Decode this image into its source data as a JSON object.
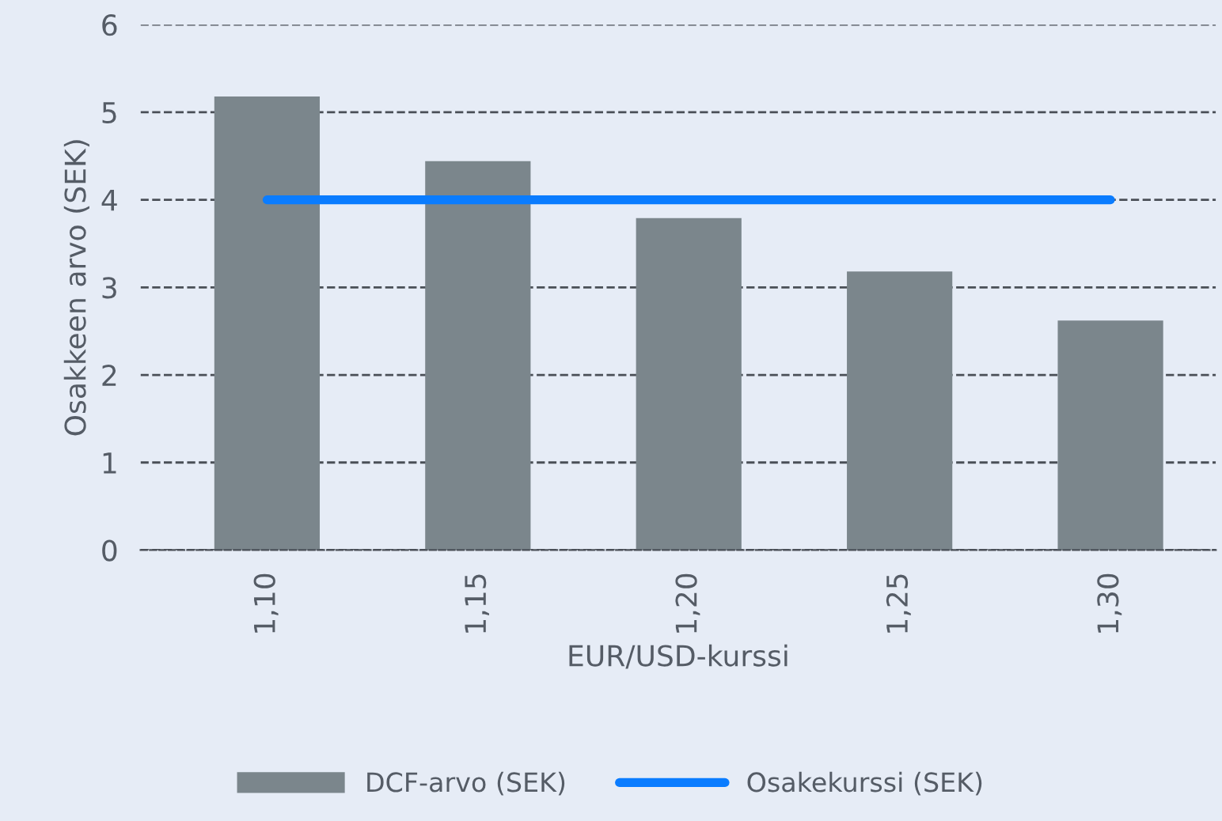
{
  "chart_data": {
    "type": "bar",
    "xlabel": "EUR/USD-kurssi",
    "ylabel": "Osakkeen arvo (SEK)",
    "categories": [
      "1,10",
      "1,15",
      "1,20",
      "1,25",
      "1,30"
    ],
    "series": [
      {
        "name": "DCF-arvo (SEK)",
        "color": "#7b868c",
        "values": [
          5.18,
          4.44,
          3.79,
          3.18,
          2.62
        ]
      },
      {
        "name": "Osakekurssi (SEK)",
        "type": "line",
        "color": "#0a7cff",
        "values": [
          4.0,
          4.0,
          4.0,
          4.0,
          4.0
        ]
      }
    ],
    "ylim": [
      0,
      6
    ],
    "yticks": [
      0,
      1,
      2,
      3,
      4,
      5,
      6
    ],
    "grid": "y",
    "legend": "bottom",
    "line_style": "solid",
    "marker": "none"
  }
}
